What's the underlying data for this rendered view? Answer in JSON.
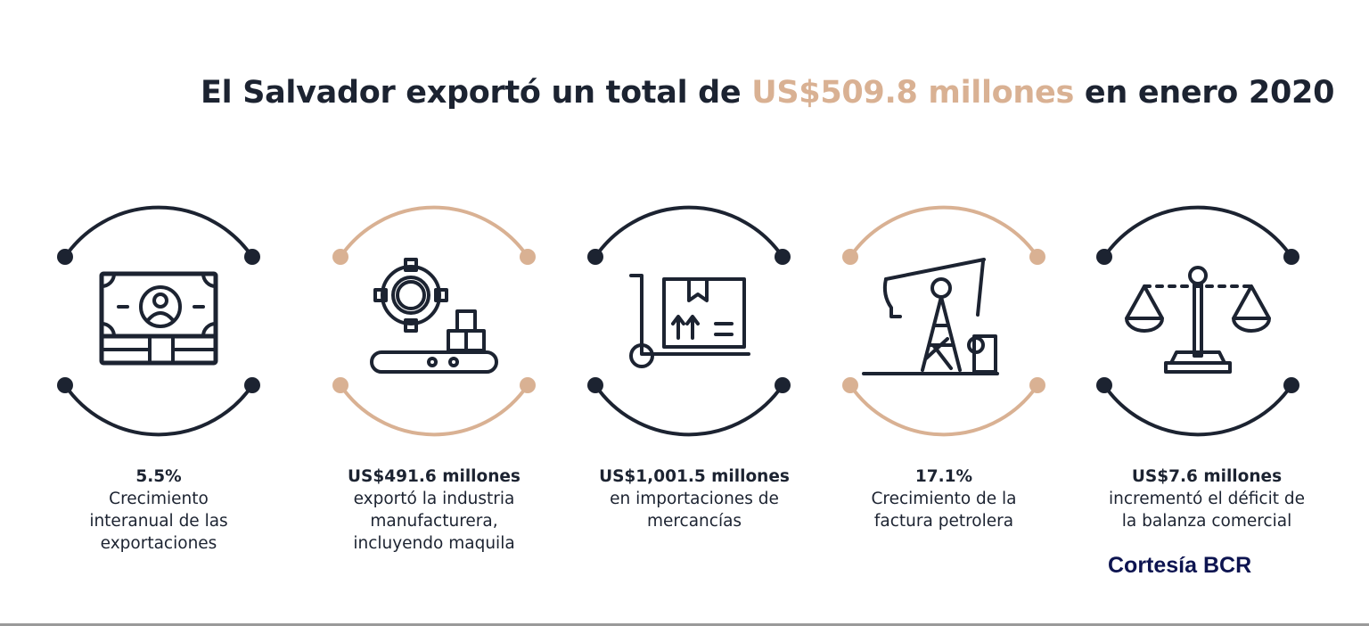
{
  "title": {
    "prefix": "El Salvador exportó un total de ",
    "highlight": "US$509.8 millones",
    "suffix": " en enero 2020"
  },
  "colors": {
    "dark": "#1c2331",
    "accent": "#d9b193",
    "credit": "#0d1450"
  },
  "items": [
    {
      "icon": "banknote-icon",
      "ring_color": "dark",
      "value": "5.5%",
      "text": [
        "Crecimiento",
        "interanual de las",
        "exportaciones"
      ]
    },
    {
      "icon": "gear-conveyor-icon",
      "ring_color": "accent",
      "value": "US$491.6 millones",
      "text": [
        "exportó la industria",
        "manufacturera,",
        "incluyendo maquila"
      ]
    },
    {
      "icon": "hand-truck-box-icon",
      "ring_color": "dark",
      "value": "US$1,001.5 millones",
      "text": [
        "en importaciones de",
        "mercancías"
      ]
    },
    {
      "icon": "oil-pump-icon",
      "ring_color": "accent",
      "value": "17.1%",
      "text": [
        "Crecimiento de la",
        "factura petrolera"
      ]
    },
    {
      "icon": "balance-scale-icon",
      "ring_color": "dark",
      "value": "US$7.6 millones",
      "text": [
        "incrementó el déficit de",
        "la balanza comercial"
      ]
    }
  ],
  "credit": "Cortesía BCR"
}
